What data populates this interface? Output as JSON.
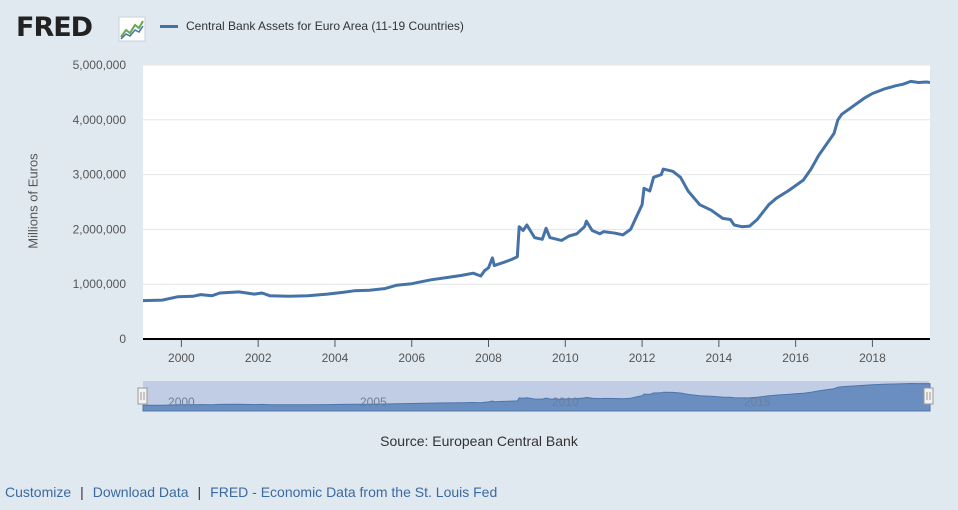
{
  "header": {
    "logo_text": "FRED",
    "logo_icon": "trend-graph-icon"
  },
  "chart_data": {
    "type": "line",
    "title": "",
    "series": [
      {
        "name": "Central Bank Assets for Euro Area (11-19 Countries)",
        "color": "#4572a7",
        "points": [
          [
            1999.0,
            700000
          ],
          [
            1999.5,
            710000
          ],
          [
            1999.9,
            770000
          ],
          [
            2000.3,
            780000
          ],
          [
            2000.5,
            810000
          ],
          [
            2000.8,
            790000
          ],
          [
            2001.0,
            840000
          ],
          [
            2001.5,
            860000
          ],
          [
            2001.9,
            820000
          ],
          [
            2002.1,
            840000
          ],
          [
            2002.3,
            790000
          ],
          [
            2002.8,
            780000
          ],
          [
            2003.3,
            790000
          ],
          [
            2003.8,
            820000
          ],
          [
            2004.2,
            850000
          ],
          [
            2004.5,
            880000
          ],
          [
            2004.9,
            890000
          ],
          [
            2005.3,
            920000
          ],
          [
            2005.6,
            980000
          ],
          [
            2006.0,
            1010000
          ],
          [
            2006.5,
            1080000
          ],
          [
            2006.9,
            1120000
          ],
          [
            2007.3,
            1160000
          ],
          [
            2007.6,
            1200000
          ],
          [
            2007.8,
            1150000
          ],
          [
            2007.9,
            1250000
          ],
          [
            2008.0,
            1300000
          ],
          [
            2008.1,
            1480000
          ],
          [
            2008.15,
            1340000
          ],
          [
            2008.4,
            1400000
          ],
          [
            2008.6,
            1450000
          ],
          [
            2008.75,
            1500000
          ],
          [
            2008.8,
            2050000
          ],
          [
            2008.9,
            1980000
          ],
          [
            2009.0,
            2080000
          ],
          [
            2009.2,
            1850000
          ],
          [
            2009.4,
            1820000
          ],
          [
            2009.5,
            2020000
          ],
          [
            2009.6,
            1850000
          ],
          [
            2009.9,
            1800000
          ],
          [
            2010.1,
            1880000
          ],
          [
            2010.3,
            1920000
          ],
          [
            2010.5,
            2050000
          ],
          [
            2010.55,
            2150000
          ],
          [
            2010.7,
            1980000
          ],
          [
            2010.9,
            1920000
          ],
          [
            2011.0,
            1960000
          ],
          [
            2011.3,
            1930000
          ],
          [
            2011.5,
            1900000
          ],
          [
            2011.7,
            2000000
          ],
          [
            2011.9,
            2300000
          ],
          [
            2012.0,
            2450000
          ],
          [
            2012.05,
            2750000
          ],
          [
            2012.2,
            2700000
          ],
          [
            2012.3,
            2950000
          ],
          [
            2012.5,
            3000000
          ],
          [
            2012.55,
            3100000
          ],
          [
            2012.8,
            3060000
          ],
          [
            2013.0,
            2950000
          ],
          [
            2013.2,
            2700000
          ],
          [
            2013.5,
            2450000
          ],
          [
            2013.8,
            2350000
          ],
          [
            2014.1,
            2200000
          ],
          [
            2014.3,
            2180000
          ],
          [
            2014.4,
            2080000
          ],
          [
            2014.6,
            2050000
          ],
          [
            2014.8,
            2060000
          ],
          [
            2015.0,
            2180000
          ],
          [
            2015.3,
            2450000
          ],
          [
            2015.5,
            2570000
          ],
          [
            2015.8,
            2700000
          ],
          [
            2016.0,
            2800000
          ],
          [
            2016.2,
            2900000
          ],
          [
            2016.4,
            3100000
          ],
          [
            2016.6,
            3350000
          ],
          [
            2016.8,
            3550000
          ],
          [
            2017.0,
            3750000
          ],
          [
            2017.1,
            4000000
          ],
          [
            2017.2,
            4100000
          ],
          [
            2017.5,
            4250000
          ],
          [
            2017.8,
            4400000
          ],
          [
            2018.0,
            4480000
          ],
          [
            2018.3,
            4560000
          ],
          [
            2018.6,
            4620000
          ],
          [
            2018.8,
            4650000
          ],
          [
            2019.0,
            4700000
          ],
          [
            2019.2,
            4680000
          ],
          [
            2019.4,
            4690000
          ],
          [
            2019.5,
            4680000
          ]
        ]
      }
    ],
    "ylabel": "Millions of Euros",
    "xlabel": "",
    "ylim": [
      0,
      5000000
    ],
    "xlim": [
      1999.0,
      2019.5
    ],
    "yticks": [
      0,
      1000000,
      2000000,
      3000000,
      4000000,
      5000000
    ],
    "ytick_labels": [
      "0",
      "1,000,000",
      "2,000,000",
      "3,000,000",
      "4,000,000",
      "5,000,000"
    ],
    "xticks": [
      2000,
      2002,
      2004,
      2006,
      2008,
      2010,
      2012,
      2014,
      2016,
      2018
    ],
    "xtick_labels": [
      "2000",
      "2002",
      "2004",
      "2006",
      "2008",
      "2010",
      "2012",
      "2014",
      "2016",
      "2018"
    ],
    "grid": "horizontal",
    "legend": "top-left",
    "source": "Source: European Central Bank"
  },
  "navigator": {
    "tick_labels": [
      "2000",
      "2005",
      "2010",
      "2015"
    ],
    "tick_years": [
      2000,
      2005,
      2010,
      2015
    ],
    "handle_left": "left-range-handle",
    "handle_right": "right-range-handle"
  },
  "footer": {
    "links": [
      "Customize",
      "Download Data",
      "FRED - Economic Data from the St. Louis Fed"
    ],
    "separator": "|"
  }
}
